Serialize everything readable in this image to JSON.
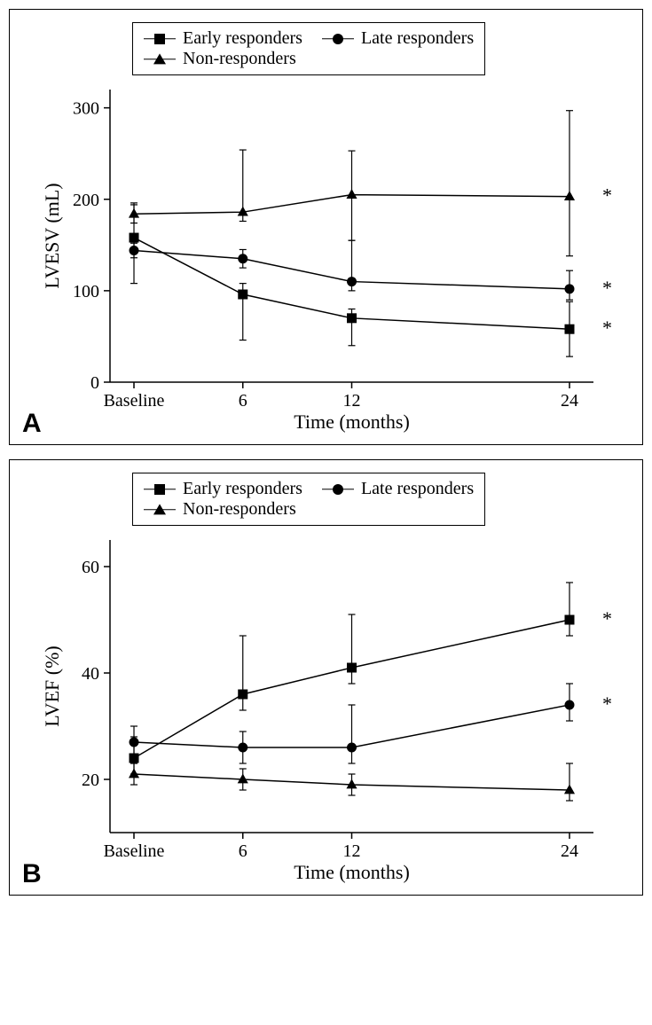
{
  "panelA": {
    "label": "A",
    "type": "line-errorbar",
    "ylabel": "LVESV (mL)",
    "xlabel": "Time (months)",
    "x_categories": [
      "Baseline",
      "6",
      "12",
      "24"
    ],
    "x_positions": [
      0,
      6,
      12,
      24
    ],
    "ylim": [
      0,
      320
    ],
    "yticks": [
      0,
      100,
      200,
      300
    ],
    "legend": {
      "early": "Early responders",
      "late": "Late responders",
      "non": "Non-responders"
    },
    "series": {
      "early": {
        "marker": "square",
        "color": "#000000",
        "values": [
          158,
          96,
          70,
          58
        ],
        "err_up": [
          38,
          12,
          10,
          30
        ],
        "err_down": [
          50,
          50,
          30,
          30
        ],
        "star": true
      },
      "late": {
        "marker": "circle",
        "color": "#000000",
        "values": [
          144,
          135,
          110,
          102
        ],
        "err_up": [
          8,
          10,
          45,
          20
        ],
        "err_down": [
          8,
          10,
          10,
          12
        ],
        "star": true
      },
      "non": {
        "marker": "triangle",
        "color": "#000000",
        "values": [
          184,
          186,
          205,
          203
        ],
        "err_up": [
          10,
          68,
          48,
          94
        ],
        "err_down": [
          10,
          10,
          50,
          65
        ],
        "star": true
      }
    },
    "line_width": 1.5,
    "marker_size": 11,
    "errorbar_cap": 8,
    "background_color": "#ffffff"
  },
  "panelB": {
    "label": "B",
    "type": "line-errorbar",
    "ylabel": "LVEF (%)",
    "xlabel": "Time (months)",
    "x_categories": [
      "Baseline",
      "6",
      "12",
      "24"
    ],
    "x_positions": [
      0,
      6,
      12,
      24
    ],
    "ylim": [
      10,
      65
    ],
    "yticks": [
      20,
      40,
      60
    ],
    "legend": {
      "early": "Early responders",
      "late": "Late responders",
      "non": "Non-responders"
    },
    "series": {
      "early": {
        "marker": "square",
        "color": "#000000",
        "values": [
          24,
          36,
          41,
          50
        ],
        "err_up": [
          4,
          11,
          10,
          7
        ],
        "err_down": [
          3,
          3,
          3,
          3
        ],
        "star": true
      },
      "late": {
        "marker": "circle",
        "color": "#000000",
        "values": [
          27,
          26,
          26,
          34
        ],
        "err_up": [
          3,
          3,
          8,
          4
        ],
        "err_down": [
          3,
          3,
          3,
          3
        ],
        "star": true
      },
      "non": {
        "marker": "triangle",
        "color": "#000000",
        "values": [
          21,
          20,
          19,
          18
        ],
        "err_up": [
          2,
          2,
          2,
          5
        ],
        "err_down": [
          2,
          2,
          2,
          2
        ],
        "star": false
      }
    },
    "line_width": 1.5,
    "marker_size": 11,
    "errorbar_cap": 8,
    "background_color": "#ffffff"
  },
  "font_family": "Times New Roman, Georgia, serif",
  "tick_fontsize": 20,
  "label_fontsize": 22,
  "panel_label_fontsize": 30
}
